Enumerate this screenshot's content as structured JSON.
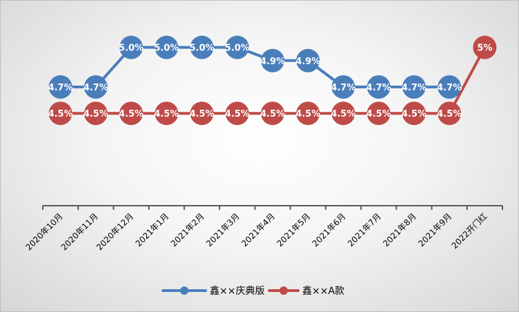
{
  "chart_data": {
    "type": "line",
    "categories": [
      "2020年10月",
      "2020年11月",
      "2020年12月",
      "2021年1月",
      "2021年2月",
      "2021年3月",
      "2021年4月",
      "2021年5月",
      "2021年6月",
      "2021年7月",
      "2021年8月",
      "2021年9月",
      "2022开门红"
    ],
    "series": [
      {
        "name": "鑫××庆典版",
        "color": "#4a7ebb",
        "values": [
          4.7,
          4.7,
          5.0,
          5.0,
          5.0,
          5.0,
          4.9,
          4.9,
          4.7,
          4.7,
          4.7,
          4.7,
          null
        ],
        "labels": [
          "4.7%",
          "4.7%",
          "5.0%",
          "5.0%",
          "5.0%",
          "5.0%",
          "4.9%",
          "4.9%",
          "4.7%",
          "4.7%",
          "4.7%",
          "4.7%",
          ""
        ]
      },
      {
        "name": "鑫××A款",
        "color": "#be4b48",
        "values": [
          4.5,
          4.5,
          4.5,
          4.5,
          4.5,
          4.5,
          4.5,
          4.5,
          4.5,
          4.5,
          4.5,
          4.5,
          5.0
        ],
        "labels": [
          "4.5%",
          "4.5%",
          "4.5%",
          "4.5%",
          "4.5%",
          "4.5%",
          "4.5%",
          "4.5%",
          "4.5%",
          "4.5%",
          "4.5%",
          "4.5%",
          "5%"
        ]
      }
    ],
    "ylim": [
      3.8,
      5.15
    ],
    "grid": false,
    "legend_position": "bottom",
    "title": "",
    "xlabel": "",
    "ylabel": ""
  }
}
